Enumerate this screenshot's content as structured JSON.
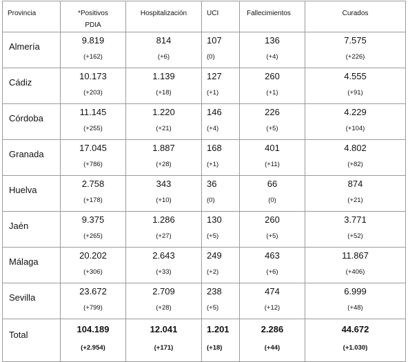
{
  "headers": {
    "provincia": "Provincia",
    "positivos_line1": "*Positivos",
    "positivos_line2": "PDIA",
    "hospitalizacion": "Hospitalización",
    "uci": "UCI",
    "fallecimientos": "Fallecimientos",
    "curados": "Curados"
  },
  "rows": [
    {
      "provincia": "Almería",
      "positivos": "9.819",
      "positivos_delta": "(+162)",
      "hosp": "814",
      "hosp_delta": "(+6)",
      "uci": "107",
      "uci_delta": "(0)",
      "fall": "136",
      "fall_delta": "(+4)",
      "cur": "7.575",
      "cur_delta": "(+226)"
    },
    {
      "provincia": "Cádiz",
      "positivos": "10.173",
      "positivos_delta": "(+203)",
      "hosp": "1.139",
      "hosp_delta": "(+18)",
      "uci": "127",
      "uci_delta": "(+1)",
      "fall": "260",
      "fall_delta": "(+1)",
      "cur": "4.555",
      "cur_delta": "(+91)"
    },
    {
      "provincia": "Córdoba",
      "positivos": "11.145",
      "positivos_delta": "(+255)",
      "hosp": "1.220",
      "hosp_delta": "(+21)",
      "uci": "146",
      "uci_delta": "(+4)",
      "fall": "226",
      "fall_delta": "(+5)",
      "cur": "4.229",
      "cur_delta": "(+104)"
    },
    {
      "provincia": "Granada",
      "positivos": "17.045",
      "positivos_delta": "(+786)",
      "hosp": "1.887",
      "hosp_delta": "(+28)",
      "uci": "168",
      "uci_delta": "(+1)",
      "fall": "401",
      "fall_delta": "(+11)",
      "cur": "4.802",
      "cur_delta": "(+82)"
    },
    {
      "provincia": "Huelva",
      "positivos": "2.758",
      "positivos_delta": "(+178)",
      "hosp": "343",
      "hosp_delta": "(+10)",
      "uci": "36",
      "uci_delta": "(0)",
      "fall": "66",
      "fall_delta": "(0)",
      "cur": "874",
      "cur_delta": "(+21)"
    },
    {
      "provincia": "Jaén",
      "positivos": "9.375",
      "positivos_delta": "(+265)",
      "hosp": "1.286",
      "hosp_delta": "(+27)",
      "uci": "130",
      "uci_delta": "(+5)",
      "fall": "260",
      "fall_delta": "(+5)",
      "cur": "3.771",
      "cur_delta": "(+52)"
    },
    {
      "provincia": "Málaga",
      "positivos": "20.202",
      "positivos_delta": "(+306)",
      "hosp": "2.643",
      "hosp_delta": "(+33)",
      "uci": "249",
      "uci_delta": "(+2)",
      "fall": "463",
      "fall_delta": "(+6)",
      "cur": "11.867",
      "cur_delta": "(+406)"
    },
    {
      "provincia": "Sevilla",
      "positivos": "23.672",
      "positivos_delta": "(+799)",
      "hosp": "2.709",
      "hosp_delta": "(+28)",
      "uci": "238",
      "uci_delta": "(+5)",
      "fall": "474",
      "fall_delta": "(+12)",
      "cur": "6.999",
      "cur_delta": "(+48)"
    }
  ],
  "total": {
    "provincia": "Total",
    "positivos": "104.189",
    "positivos_delta": "(+2.954)",
    "hosp": "12.041",
    "hosp_delta": "(+171)",
    "uci": "1.201",
    "uci_delta": "(+18)",
    "fall": "2.286",
    "fall_delta": "(+44)",
    "cur": "44.672",
    "cur_delta": "(+1.030)"
  }
}
